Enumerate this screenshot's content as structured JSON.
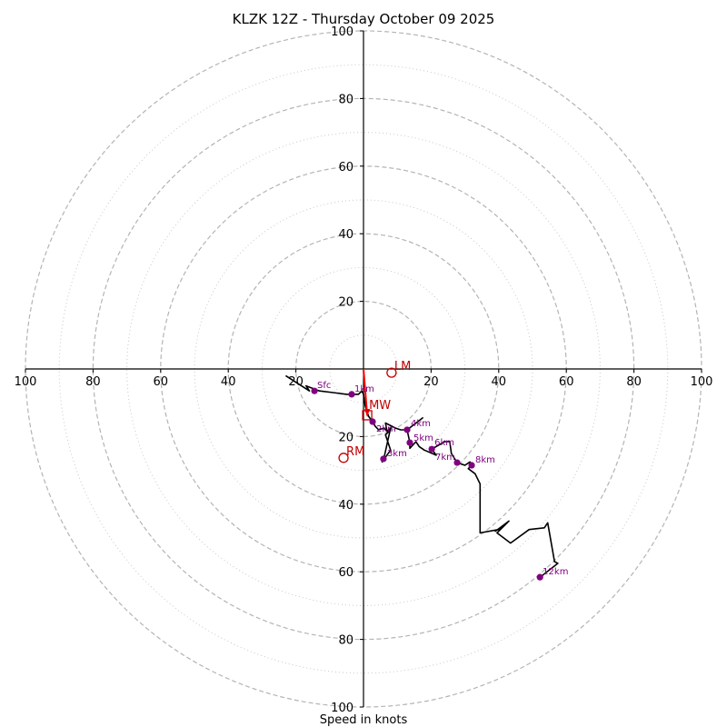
{
  "chart_data": {
    "type": "hodograph",
    "title": "KLZK 12Z - Thursday October 09 2025",
    "xlabel": "Speed in knots",
    "ylabel": "",
    "units": "knots",
    "range_max": 100,
    "major_rings": [
      20,
      40,
      60,
      80,
      100
    ],
    "minor_rings": [
      10,
      30,
      50,
      70,
      90
    ],
    "axis_tick_labels": [
      "100",
      "80",
      "60",
      "40",
      "20",
      "20",
      "40",
      "60",
      "80",
      "100"
    ],
    "vertical_tick_labels": [
      "100",
      "80",
      "60",
      "40",
      "20",
      "20",
      "40",
      "60",
      "80",
      "100"
    ],
    "grid": true,
    "hodograph_trace": {
      "color": "#000000",
      "u": [
        -23,
        -16,
        -17,
        -13,
        -9,
        -5,
        -3.5,
        -1.5,
        -1,
        -0.5,
        0,
        0.5,
        1.5,
        2.7,
        3.5,
        4.5,
        6,
        7.5,
        6.5,
        8,
        5.5,
        5.9,
        6,
        8,
        7,
        6.5,
        9.5,
        11,
        12.9,
        17.5,
        12.9,
        13.7,
        13.7,
        15.5,
        16.5,
        18,
        21.5,
        20.2,
        24,
        25.5,
        26,
        27.7,
        30,
        31.5,
        32,
        31,
        33,
        34.5,
        34.5,
        40,
        42,
        39,
        43,
        39.5,
        43.5,
        49,
        53.5,
        54.5,
        56.5,
        57.5,
        52.2
      ],
      "v": [
        -2,
        -6.5,
        -5,
        -6.5,
        -7,
        -7.5,
        -7.5,
        -7.5,
        -7,
        -6.5,
        -7.5,
        -11,
        -14,
        -15.6,
        -17,
        -18,
        -17.5,
        -18.5,
        -19.5,
        -24,
        -27.5,
        -26.6,
        -26.6,
        -17.5,
        -18.5,
        -16,
        -17.5,
        -18,
        -18,
        -14.5,
        -18,
        -21.8,
        -23.5,
        -21.5,
        -23,
        -24,
        -25.5,
        -23.7,
        -21.5,
        -21.5,
        -25,
        -27.7,
        -28.5,
        -27.5,
        -28.5,
        -29.5,
        -31,
        -34,
        -48.5,
        -47.5,
        -46,
        -48,
        -45,
        -48.5,
        -51.5,
        -47.5,
        -47,
        -45.5,
        -57,
        -57.5,
        -61.6
      ]
    },
    "height_markers": [
      {
        "label": "Sfc",
        "u": -14.5,
        "v": -6.5
      },
      {
        "label": "1km",
        "u": -3.5,
        "v": -7.5
      },
      {
        "label": "2km",
        "u": 2.7,
        "v": -15.6
      },
      {
        "label": "3km",
        "u": 5.9,
        "v": -26.6
      },
      {
        "label": "4km",
        "u": 12.9,
        "v": -18.0
      },
      {
        "label": "5km",
        "u": 13.7,
        "v": -21.8
      },
      {
        "label": "6km",
        "u": 20.2,
        "v": -23.7
      },
      {
        "label": "7km",
        "u": 27.7,
        "v": -27.7
      },
      {
        "label": "8km",
        "u": 32.0,
        "v": -28.5
      },
      {
        "label": "12km",
        "u": 52.2,
        "v": -61.6
      }
    ],
    "marker_color": "#800080",
    "storm_motion": {
      "color": "#c00000",
      "lm": {
        "label": "LM",
        "u": 8.3,
        "v": -1.1
      },
      "rm": {
        "label": "RM",
        "u": -5.9,
        "v": -26.3
      },
      "mw": {
        "label": "MW",
        "u": 1.1,
        "v": -13.7
      }
    },
    "shear_vector": {
      "color": "#ff0000",
      "from_u": 0,
      "from_v": 0,
      "to_u": 1.1,
      "to_v": -13.7
    }
  }
}
